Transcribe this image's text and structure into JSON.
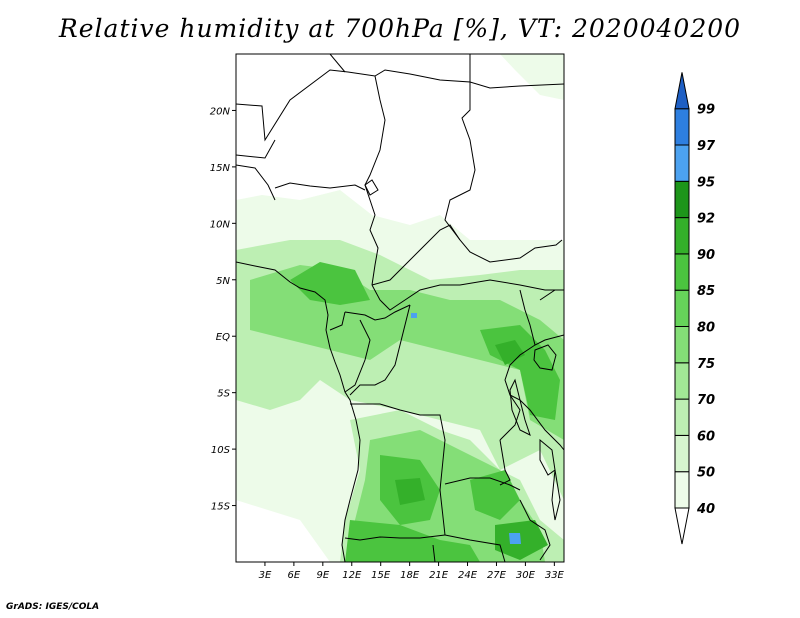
{
  "title": "Relative humidity at 700hPa [%], VT: 2020040200",
  "credit": "GrADS: IGES/COLA",
  "map": {
    "projection": "lat-lon",
    "lon_range": [
      0,
      34
    ],
    "lat_range": [
      -20,
      25
    ],
    "lat_ticks": [
      {
        "lat": 20,
        "label": "20N"
      },
      {
        "lat": 15,
        "label": "15N"
      },
      {
        "lat": 10,
        "label": "10N"
      },
      {
        "lat": 5,
        "label": "5N"
      },
      {
        "lat": 0,
        "label": "EQ"
      },
      {
        "lat": -5,
        "label": "5S"
      },
      {
        "lat": -10,
        "label": "10S"
      },
      {
        "lat": -15,
        "label": "15S"
      }
    ],
    "lon_ticks": [
      {
        "lon": 3,
        "label": "3E"
      },
      {
        "lon": 6,
        "label": "6E"
      },
      {
        "lon": 9,
        "label": "9E"
      },
      {
        "lon": 12,
        "label": "12E"
      },
      {
        "lon": 15,
        "label": "15E"
      },
      {
        "lon": 18,
        "label": "18E"
      },
      {
        "lon": 21,
        "label": "21E"
      },
      {
        "lon": 24,
        "label": "24E"
      },
      {
        "lon": 27,
        "label": "27E"
      },
      {
        "lon": 30,
        "label": "30E"
      },
      {
        "lon": 33,
        "label": "33E"
      }
    ]
  },
  "colorbar": {
    "levels": [
      {
        "label": "40",
        "color": "#edfbe9"
      },
      {
        "label": "50",
        "color": "#d6f5cf"
      },
      {
        "label": "60",
        "color": "#bdefb3"
      },
      {
        "label": "70",
        "color": "#a2e796"
      },
      {
        "label": "75",
        "color": "#84de77"
      },
      {
        "label": "80",
        "color": "#66d35a"
      },
      {
        "label": "85",
        "color": "#4bc43f"
      },
      {
        "label": "90",
        "color": "#34b02a"
      },
      {
        "label": "92",
        "color": "#1d951a"
      },
      {
        "label": "95",
        "color": "#4ca2f0"
      },
      {
        "label": "97",
        "color": "#2e7fe0"
      },
      {
        "label": "99",
        "color": "#1e5fc4"
      }
    ],
    "below_color": "#ffffff"
  }
}
